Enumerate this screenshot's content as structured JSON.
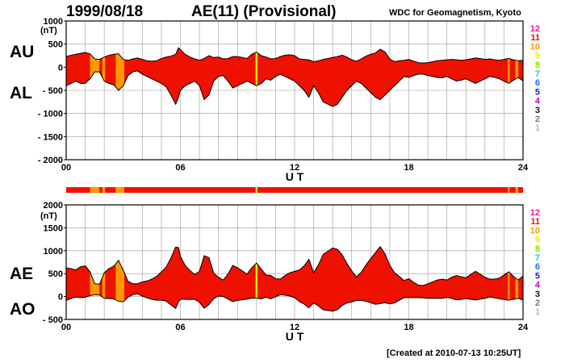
{
  "header": {
    "date": "1999/08/18",
    "title": "AE(11) (Provisional)",
    "institution": "WDC for Geomagnetism, Kyoto"
  },
  "footer": {
    "created": "[Created at 2010-07-13 10:25UT]"
  },
  "station_scale": {
    "levels": [
      "12",
      "11",
      "10",
      "9",
      "8",
      "7",
      "6",
      "5",
      "4",
      "3",
      "2",
      "1"
    ],
    "colors": [
      "#ff1493",
      "#ee1100",
      "#ff9900",
      "#eeee00",
      "#88dd00",
      "#00dddd",
      "#2266ff",
      "#2222bb",
      "#bb00bb",
      "#111111",
      "#777777",
      "#bbbbbb"
    ]
  },
  "colors": {
    "fill_full": "#ff2200",
    "fill_partial": "#ff9900",
    "bar_full": "#ee2200",
    "line": "#000000",
    "grid": "#999999"
  },
  "station_count": {
    "default": "11",
    "intervals": [
      {
        "from": 1.25,
        "to": 1.75,
        "count": "10"
      },
      {
        "from": 1.75,
        "to": 1.9,
        "count": "11"
      },
      {
        "from": 1.9,
        "to": 2.05,
        "count": "10"
      },
      {
        "from": 2.05,
        "to": 2.6,
        "count": "11"
      },
      {
        "from": 2.6,
        "to": 3.05,
        "count": "10"
      },
      {
        "from": 9.95,
        "to": 10.05,
        "count": "9"
      },
      {
        "from": 23.2,
        "to": 23.3,
        "count": "10"
      },
      {
        "from": 23.6,
        "to": 23.75,
        "count": "10"
      }
    ]
  },
  "chart_data": [
    {
      "type": "area",
      "panel": "upper",
      "upper_label": "AU",
      "lower_label": "AL",
      "unit": "(nT)",
      "xlabel": "U T",
      "xlim": [
        0,
        24
      ],
      "ylim": [
        -2000,
        1000
      ],
      "yticks": [
        "1000",
        "500",
        "0",
        "- 500",
        "- 1000",
        "- 1500",
        "- 2000"
      ],
      "xticks": [
        "00",
        "06",
        "12",
        "18",
        "24"
      ],
      "grid": true,
      "x": [
        0,
        0.25,
        0.5,
        0.75,
        1,
        1.25,
        1.5,
        1.75,
        2,
        2.25,
        2.5,
        2.75,
        3,
        3.25,
        3.5,
        3.75,
        4,
        4.25,
        4.5,
        4.75,
        5,
        5.25,
        5.5,
        5.75,
        5.9,
        6,
        6.25,
        6.5,
        6.75,
        7,
        7.25,
        7.5,
        7.75,
        8,
        8.25,
        8.5,
        8.75,
        9,
        9.25,
        9.5,
        9.75,
        10,
        10.25,
        10.5,
        10.75,
        11,
        11.25,
        11.5,
        11.75,
        12,
        12.25,
        12.5,
        12.75,
        13,
        13.25,
        13.5,
        13.75,
        14,
        14.25,
        14.5,
        14.75,
        15,
        15.25,
        15.5,
        15.75,
        16,
        16.25,
        16.5,
        16.75,
        17,
        17.25,
        17.5,
        17.75,
        18,
        18.25,
        18.5,
        18.75,
        19,
        19.25,
        19.5,
        19.75,
        20,
        20.25,
        20.5,
        20.75,
        21,
        21.25,
        21.5,
        21.75,
        22,
        22.25,
        22.5,
        22.75,
        23,
        23.25,
        23.5,
        23.75,
        24
      ],
      "series": [
        {
          "name": "AU",
          "values": [
            230,
            260,
            280,
            300,
            320,
            290,
            180,
            170,
            220,
            260,
            280,
            290,
            170,
            150,
            180,
            200,
            170,
            140,
            130,
            140,
            190,
            220,
            240,
            280,
            420,
            380,
            280,
            220,
            180,
            150,
            190,
            250,
            210,
            220,
            180,
            190,
            230,
            230,
            210,
            190,
            280,
            330,
            250,
            220,
            180,
            190,
            230,
            260,
            270,
            250,
            180,
            170,
            160,
            120,
            140,
            170,
            190,
            210,
            230,
            260,
            220,
            160,
            130,
            180,
            240,
            280,
            310,
            390,
            330,
            180,
            120,
            140,
            150,
            170,
            130,
            100,
            90,
            100,
            120,
            140,
            150,
            160,
            170,
            160,
            150,
            160,
            180,
            200,
            190,
            170,
            180,
            160,
            150,
            170,
            190,
            160,
            140,
            150
          ]
        },
        {
          "name": "AL",
          "values": [
            -400,
            -350,
            -300,
            -350,
            -350,
            -250,
            -100,
            -100,
            -300,
            -350,
            -380,
            -500,
            -400,
            -180,
            -100,
            -80,
            -150,
            -200,
            -250,
            -300,
            -350,
            -420,
            -600,
            -800,
            -650,
            -500,
            -400,
            -350,
            -300,
            -400,
            -700,
            -600,
            -300,
            -200,
            -180,
            -300,
            -450,
            -400,
            -350,
            -300,
            -350,
            -400,
            -350,
            -250,
            -280,
            -200,
            -150,
            -200,
            -250,
            -300,
            -400,
            -500,
            -650,
            -400,
            -550,
            -750,
            -800,
            -850,
            -800,
            -650,
            -500,
            -400,
            -300,
            -350,
            -450,
            -550,
            -650,
            -700,
            -600,
            -500,
            -400,
            -300,
            -200,
            -220,
            -180,
            -150,
            -150,
            -180,
            -200,
            -220,
            -230,
            -200,
            -250,
            -300,
            -280,
            -250,
            -300,
            -350,
            -300,
            -250,
            -200,
            -220,
            -250,
            -300,
            -350,
            -280,
            -220,
            -300
          ]
        }
      ]
    },
    {
      "type": "area",
      "panel": "lower",
      "upper_label": "AE",
      "lower_label": "AO",
      "unit": "(nT)",
      "xlabel": "U T",
      "xlim": [
        0,
        24
      ],
      "ylim": [
        -500,
        2000
      ],
      "yticks": [
        "2000",
        "1500",
        "1000",
        "500",
        "0",
        "- 500"
      ],
      "xticks": [
        "00",
        "06",
        "12",
        "18",
        "24"
      ],
      "grid": true,
      "x": [
        0,
        0.25,
        0.5,
        0.75,
        1,
        1.25,
        1.5,
        1.75,
        2,
        2.25,
        2.5,
        2.75,
        3,
        3.25,
        3.5,
        3.75,
        4,
        4.25,
        4.5,
        4.75,
        5,
        5.25,
        5.5,
        5.75,
        5.9,
        6,
        6.25,
        6.5,
        6.75,
        7,
        7.25,
        7.5,
        7.75,
        8,
        8.25,
        8.5,
        8.75,
        9,
        9.25,
        9.5,
        9.75,
        10,
        10.25,
        10.5,
        10.75,
        11,
        11.25,
        11.5,
        11.75,
        12,
        12.25,
        12.5,
        12.75,
        13,
        13.25,
        13.5,
        13.75,
        14,
        14.25,
        14.5,
        14.75,
        15,
        15.25,
        15.5,
        15.75,
        16,
        16.25,
        16.5,
        16.75,
        17,
        17.25,
        17.5,
        17.75,
        18,
        18.25,
        18.5,
        18.75,
        19,
        19.25,
        19.5,
        19.75,
        20,
        20.25,
        20.5,
        20.75,
        21,
        21.25,
        21.5,
        21.75,
        22,
        22.25,
        22.5,
        22.75,
        23,
        23.25,
        23.5,
        23.75,
        24
      ],
      "series": [
        {
          "name": "AE",
          "values": [
            630,
            610,
            580,
            650,
            670,
            540,
            280,
            270,
            520,
            610,
            660,
            790,
            570,
            330,
            280,
            280,
            320,
            340,
            380,
            440,
            540,
            640,
            840,
            1080,
            1070,
            880,
            680,
            570,
            480,
            550,
            890,
            850,
            510,
            420,
            360,
            490,
            680,
            630,
            560,
            490,
            630,
            730,
            600,
            470,
            460,
            390,
            380,
            460,
            520,
            550,
            580,
            670,
            810,
            520,
            690,
            920,
            990,
            1060,
            1030,
            910,
            720,
            560,
            430,
            530,
            690,
            830,
            960,
            1090,
            930,
            680,
            520,
            440,
            350,
            390,
            310,
            250,
            240,
            280,
            320,
            360,
            380,
            360,
            420,
            460,
            430,
            410,
            480,
            550,
            490,
            420,
            380,
            380,
            400,
            470,
            540,
            440,
            360,
            450
          ]
        },
        {
          "name": "AO",
          "values": [
            -85,
            -45,
            -10,
            -25,
            -15,
            20,
            40,
            35,
            -40,
            -45,
            -50,
            -105,
            -115,
            -15,
            40,
            60,
            10,
            -30,
            -60,
            -80,
            -80,
            -100,
            -180,
            -260,
            -115,
            -60,
            -60,
            -65,
            -60,
            -125,
            -255,
            -175,
            -45,
            10,
            0,
            -55,
            -110,
            -85,
            -70,
            -55,
            -35,
            -35,
            -50,
            -15,
            -50,
            -5,
            40,
            30,
            10,
            -25,
            -110,
            -165,
            -245,
            -140,
            -205,
            -290,
            -305,
            -320,
            -285,
            -195,
            -140,
            -120,
            -85,
            -85,
            -105,
            -135,
            -170,
            -155,
            -135,
            -160,
            -140,
            -80,
            -25,
            -25,
            -25,
            -25,
            -30,
            -40,
            -40,
            -40,
            -40,
            -20,
            -40,
            -70,
            -65,
            -45,
            -60,
            -75,
            -55,
            -40,
            -10,
            -30,
            -50,
            -65,
            -80,
            -60,
            -40,
            -75
          ]
        }
      ]
    }
  ]
}
